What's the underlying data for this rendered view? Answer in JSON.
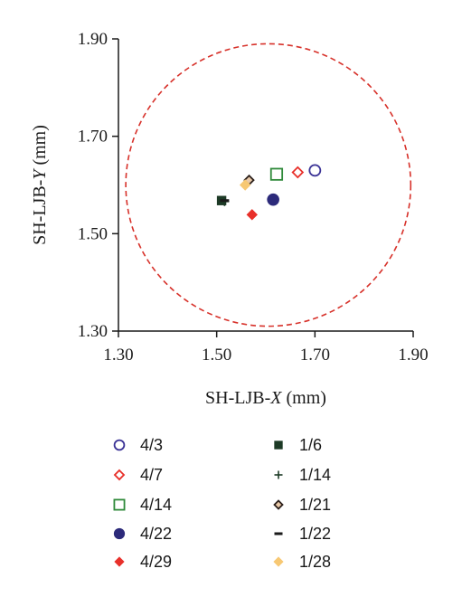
{
  "chart_data": {
    "type": "scatter",
    "xlabel": {
      "prefix": "SH-LJB-",
      "var": "X",
      "suffix": " (mm)"
    },
    "ylabel": {
      "prefix": "SH-LJB-",
      "var": "Y",
      "suffix": " (mm)"
    },
    "xlim": [
      1.3,
      1.9
    ],
    "ylim": [
      1.3,
      1.9
    ],
    "xticks": [
      1.3,
      1.5,
      1.7,
      1.9
    ],
    "yticks": [
      1.3,
      1.5,
      1.7,
      1.9
    ],
    "xtick_labels": [
      "1.30",
      "1.50",
      "1.70",
      "1.90"
    ],
    "ytick_labels": [
      "1.30",
      "1.50",
      "1.70",
      "1.90"
    ],
    "grid": false,
    "legend_position": "bottom",
    "reference_circle": {
      "center_x": 1.605,
      "center_y": 1.6,
      "radius": 0.29,
      "color": "#d7312a",
      "style": "dashed"
    },
    "series": [
      {
        "name": "4/3",
        "marker": "circle-open",
        "color": "#3b3396",
        "x": 1.7,
        "y": 1.63
      },
      {
        "name": "4/7",
        "marker": "diamond-open",
        "color": "#e8302a",
        "x": 1.665,
        "y": 1.626
      },
      {
        "name": "4/14",
        "marker": "square-open",
        "color": "#2f8a3a",
        "x": 1.622,
        "y": 1.622
      },
      {
        "name": "4/22",
        "marker": "circle-filled",
        "color": "#2c2a7a",
        "x": 1.615,
        "y": 1.57
      },
      {
        "name": "4/29",
        "marker": "diamond-filled",
        "color": "#e8302a",
        "x": 1.572,
        "y": 1.539
      },
      {
        "name": "1/6",
        "marker": "square-filled",
        "color": "#1d3a26",
        "x": 1.51,
        "y": 1.568
      },
      {
        "name": "1/14",
        "marker": "plus",
        "color": "#1d3a26",
        "x": 1.516,
        "y": 1.566
      },
      {
        "name": "1/21",
        "marker": "diamond-dark",
        "color": "#2b1f1a",
        "x": 1.566,
        "y": 1.61
      },
      {
        "name": "1/22",
        "marker": "dash",
        "color": "#1a1a1a",
        "x": 1.516,
        "y": 1.568
      },
      {
        "name": "1/28",
        "marker": "diamond-filled",
        "color": "#f7c873",
        "x": 1.558,
        "y": 1.6
      }
    ]
  }
}
